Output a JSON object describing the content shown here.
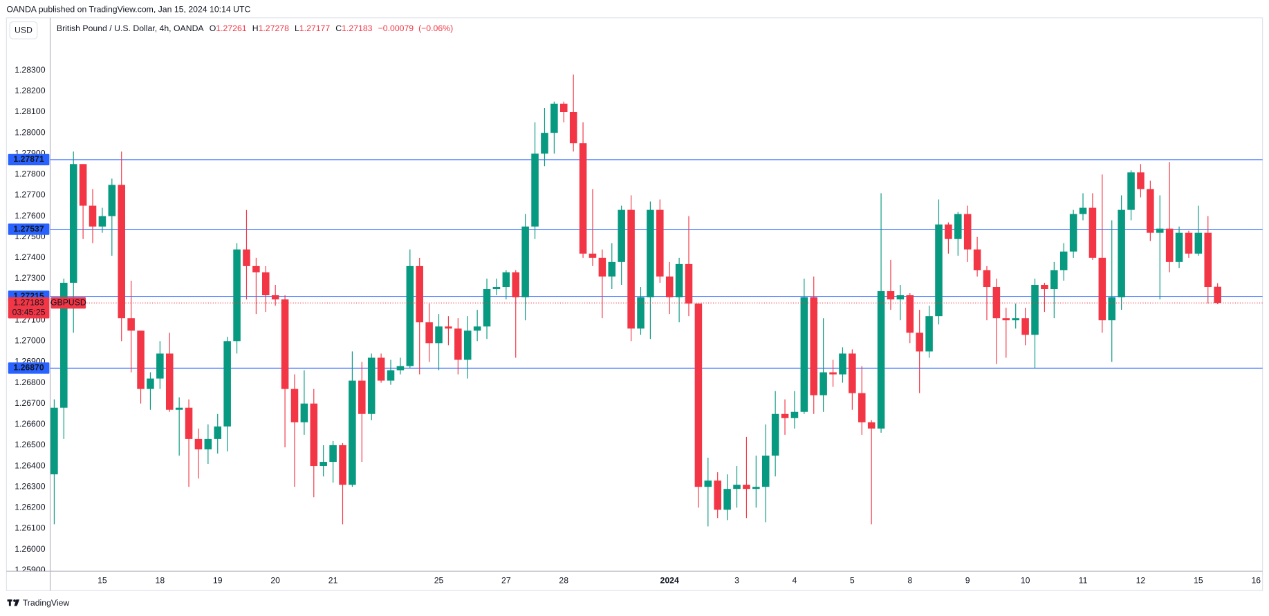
{
  "header": {
    "publisher_line": "OANDA published on TradingView.com, Jan 15, 2024 10:14 UTC",
    "currency": "USD",
    "brand": "TradingView"
  },
  "legend": {
    "name": "British Pound / U.S. Dollar, 4h, OANDA",
    "open_label": "O",
    "open": 1.27261,
    "high_label": "H",
    "high": 1.27278,
    "low_label": "L",
    "low": 1.27177,
    "close_label": "C",
    "close": 1.27183,
    "change": {
      "value": -0.00079,
      "label": "−0.00079"
    },
    "change_pct": {
      "value": -0.06,
      "label": "(−0.06%)"
    }
  },
  "chart_data": {
    "type": "candlestick",
    "up_color": "#089981",
    "down_color": "#f23645",
    "categories": [
      null,
      null,
      null,
      null,
      null,
      "15",
      null,
      null,
      null,
      null,
      null,
      "18",
      null,
      null,
      null,
      null,
      null,
      "19",
      null,
      null,
      null,
      null,
      null,
      "20",
      null,
      null,
      null,
      null,
      null,
      "21",
      null,
      null,
      null,
      null,
      null,
      null,
      null,
      null,
      null,
      null,
      "25",
      null,
      null,
      null,
      null,
      null,
      null,
      "27",
      null,
      null,
      null,
      null,
      null,
      "28",
      null,
      null,
      null,
      null,
      null,
      null,
      null,
      null,
      null,
      null,
      "2024",
      null,
      null,
      null,
      null,
      null,
      null,
      "3",
      null,
      null,
      null,
      null,
      null,
      "4",
      null,
      null,
      null,
      null,
      null,
      "5",
      null,
      null,
      null,
      null,
      null,
      "8",
      null,
      null,
      null,
      null,
      null,
      "9",
      null,
      null,
      null,
      null,
      null,
      "10",
      null,
      null,
      null,
      null,
      null,
      "11",
      null,
      null,
      null,
      null,
      null,
      "12",
      null,
      null,
      null,
      null,
      null,
      "15",
      null,
      null
    ],
    "x_axis_next_label": "16",
    "open": [
      1.2636,
      1.2668,
      1.2728,
      1.2785,
      1.2765,
      1.2755,
      1.276,
      1.2775,
      1.2711,
      1.2705,
      1.2677,
      1.2682,
      1.2694,
      1.2667,
      1.2668,
      1.2653,
      1.2648,
      1.2653,
      1.2659,
      1.27,
      1.2744,
      1.2736,
      1.2733,
      1.2722,
      1.272,
      1.2677,
      1.2661,
      1.267,
      1.264,
      1.2642,
      1.265,
      1.2631,
      1.2681,
      1.2665,
      1.2692,
      1.2681,
      1.2686,
      1.2688,
      1.2736,
      1.2709,
      1.2699,
      1.2707,
      1.2706,
      1.2691,
      1.2705,
      1.2707,
      1.2725,
      1.2726,
      1.2733,
      1.2721,
      1.2755,
      1.279,
      1.28,
      1.2814,
      1.281,
      1.2795,
      1.2742,
      1.274,
      1.2731,
      1.2738,
      1.2763,
      1.2706,
      1.2721,
      1.2763,
      1.2731,
      1.2721,
      1.2737,
      1.2718,
      1.263,
      1.2633,
      1.2619,
      1.2629,
      1.2631,
      1.2629,
      1.263,
      1.2645,
      1.2665,
      1.2663,
      1.2666,
      1.2721,
      1.2674,
      1.2685,
      1.2684,
      1.2694,
      1.2675,
      1.2661,
      1.2658,
      1.2724,
      1.272,
      1.2722,
      1.2704,
      1.2695,
      1.2712,
      1.2756,
      1.2749,
      1.2761,
      1.2744,
      1.2734,
      1.2726,
      1.2711,
      1.271,
      1.2711,
      1.2703,
      1.2727,
      1.2725,
      1.2734,
      1.2743,
      1.2761,
      1.2764,
      1.274,
      1.271,
      1.2721,
      1.2763,
      1.2781,
      1.2773,
      1.2752,
      1.2754,
      1.2738,
      1.2752,
      1.2742,
      1.2752,
      1.27261
    ],
    "high": [
      1.2672,
      1.273,
      1.2791,
      1.2785,
      1.2773,
      1.2764,
      1.2778,
      1.2791,
      1.2729,
      1.2705,
      1.2685,
      1.27,
      1.2704,
      1.2673,
      1.2672,
      1.2658,
      1.266,
      1.2665,
      1.2702,
      1.2747,
      1.2763,
      1.274,
      1.2736,
      1.2727,
      1.2722,
      1.2684,
      1.2686,
      1.2677,
      1.265,
      1.2652,
      1.2651,
      1.2695,
      1.269,
      1.2694,
      1.2694,
      1.2691,
      1.2692,
      1.2744,
      1.274,
      1.2718,
      1.2713,
      1.2712,
      1.2711,
      1.2712,
      1.2715,
      1.273,
      1.273,
      1.2734,
      1.2734,
      1.2761,
      1.2805,
      1.2812,
      1.2815,
      1.2815,
      1.2828,
      1.2805,
      1.2773,
      1.2744,
      1.2747,
      1.2765,
      1.277,
      1.2726,
      1.2767,
      1.2768,
      1.2738,
      1.274,
      1.276,
      1.2718,
      1.2644,
      1.2637,
      1.2636,
      1.264,
      1.2654,
      1.2645,
      1.266,
      1.2676,
      1.2672,
      1.2676,
      1.273,
      1.2731,
      1.2711,
      1.2691,
      1.2697,
      1.2696,
      1.2688,
      1.2662,
      1.2771,
      1.2739,
      1.2727,
      1.2723,
      1.2715,
      1.2717,
      1.2768,
      1.2757,
      1.2762,
      1.2765,
      1.275,
      1.2736,
      1.273,
      1.2716,
      1.2718,
      1.2716,
      1.273,
      1.2728,
      1.2738,
      1.2747,
      1.2763,
      1.2771,
      1.2771,
      1.278,
      1.2758,
      1.277,
      1.2782,
      1.2785,
      1.2777,
      1.277,
      1.2786,
      1.2755,
      1.2753,
      1.2765,
      1.276,
      1.27278
    ],
    "low": [
      1.2612,
      1.2653,
      1.2704,
      1.2749,
      1.2747,
      1.2752,
      1.2741,
      1.27,
      1.2685,
      1.267,
      1.2667,
      1.2677,
      1.2666,
      1.2645,
      1.263,
      1.2634,
      1.2641,
      1.2646,
      1.2647,
      1.2694,
      1.272,
      1.2713,
      1.2714,
      1.2717,
      1.2649,
      1.263,
      1.2655,
      1.2625,
      1.2635,
      1.2632,
      1.2612,
      1.263,
      1.2642,
      1.2662,
      1.268,
      1.2679,
      1.2684,
      1.2687,
      1.2684,
      1.269,
      1.2686,
      1.2698,
      1.2684,
      1.2682,
      1.27,
      1.2701,
      1.2722,
      1.272,
      1.2692,
      1.271,
      1.2749,
      1.2784,
      1.279,
      1.2805,
      1.2791,
      1.274,
      1.2736,
      1.2711,
      1.2725,
      1.2727,
      1.27,
      1.2703,
      1.2701,
      1.2728,
      1.2713,
      1.2709,
      1.2712,
      1.262,
      1.2611,
      1.2615,
      1.2614,
      1.262,
      1.2615,
      1.262,
      1.2613,
      1.2635,
      1.2655,
      1.2658,
      1.2665,
      1.2665,
      1.2666,
      1.2678,
      1.268,
      1.2667,
      1.2655,
      1.2612,
      1.2656,
      1.2715,
      1.271,
      1.2699,
      1.2675,
      1.2692,
      1.2708,
      1.2742,
      1.2741,
      1.2738,
      1.2731,
      1.271,
      1.2689,
      1.2692,
      1.2706,
      1.2698,
      1.2687,
      1.2714,
      1.2711,
      1.2729,
      1.274,
      1.2758,
      1.2739,
      1.2704,
      1.269,
      1.2715,
      1.2758,
      1.2769,
      1.2748,
      1.272,
      1.2733,
      1.2735,
      1.274,
      1.2741,
      1.2718,
      1.27177
    ],
    "close": [
      1.2668,
      1.2728,
      1.2785,
      1.2765,
      1.2755,
      1.276,
      1.2775,
      1.2711,
      1.2705,
      1.2677,
      1.2682,
      1.2694,
      1.2667,
      1.2668,
      1.2653,
      1.2648,
      1.2653,
      1.2659,
      1.27,
      1.2744,
      1.2736,
      1.2733,
      1.2722,
      1.272,
      1.2677,
      1.2661,
      1.267,
      1.264,
      1.2642,
      1.265,
      1.2631,
      1.2681,
      1.2665,
      1.2692,
      1.2681,
      1.2686,
      1.2688,
      1.2736,
      1.2709,
      1.2699,
      1.2707,
      1.2706,
      1.2691,
      1.2705,
      1.2707,
      1.2725,
      1.2726,
      1.2733,
      1.2721,
      1.2755,
      1.279,
      1.28,
      1.2814,
      1.281,
      1.2795,
      1.2742,
      1.274,
      1.2731,
      1.2738,
      1.2763,
      1.2706,
      1.2721,
      1.2763,
      1.2731,
      1.2721,
      1.2737,
      1.2718,
      1.263,
      1.2633,
      1.2619,
      1.2629,
      1.2631,
      1.2629,
      1.263,
      1.2645,
      1.2665,
      1.2663,
      1.2666,
      1.2721,
      1.2674,
      1.2685,
      1.2684,
      1.2694,
      1.2675,
      1.2661,
      1.2658,
      1.2724,
      1.272,
      1.2722,
      1.2704,
      1.2695,
      1.2712,
      1.2756,
      1.2749,
      1.2761,
      1.2744,
      1.2734,
      1.2726,
      1.2711,
      1.271,
      1.2711,
      1.2703,
      1.2727,
      1.2725,
      1.2734,
      1.2743,
      1.2761,
      1.2764,
      1.274,
      1.271,
      1.2721,
      1.2763,
      1.2781,
      1.2773,
      1.2752,
      1.2754,
      1.2738,
      1.2752,
      1.2742,
      1.2752,
      1.2726,
      1.27183
    ],
    "ylim": [
      1.25895,
      1.28463
    ],
    "yticks": [
      {
        "value": 1.259,
        "label": "1.25900"
      },
      {
        "value": 1.26,
        "label": "1.26000"
      },
      {
        "value": 1.261,
        "label": "1.26100"
      },
      {
        "value": 1.262,
        "label": "1.26200"
      },
      {
        "value": 1.263,
        "label": "1.26300"
      },
      {
        "value": 1.264,
        "label": "1.26400"
      },
      {
        "value": 1.265,
        "label": "1.26500"
      },
      {
        "value": 1.266,
        "label": "1.26600"
      },
      {
        "value": 1.267,
        "label": "1.26700"
      },
      {
        "value": 1.268,
        "label": "1.26800"
      },
      {
        "value": 1.269,
        "label": "1.26900"
      },
      {
        "value": 1.27,
        "label": "1.27000"
      },
      {
        "value": 1.271,
        "label": "1.27100"
      },
      {
        "value": 1.272,
        "label": "1.27200"
      },
      {
        "value": 1.273,
        "label": "1.27300"
      },
      {
        "value": 1.274,
        "label": "1.27400"
      },
      {
        "value": 1.275,
        "label": "1.27500"
      },
      {
        "value": 1.276,
        "label": "1.27600"
      },
      {
        "value": 1.277,
        "label": "1.27700"
      },
      {
        "value": 1.278,
        "label": "1.27800"
      },
      {
        "value": 1.279,
        "label": "1.27900"
      },
      {
        "value": 1.28,
        "label": "1.28000"
      },
      {
        "value": 1.281,
        "label": "1.28100"
      },
      {
        "value": 1.282,
        "label": "1.28200"
      },
      {
        "value": 1.283,
        "label": "1.28300"
      }
    ],
    "levels": [
      1.27871,
      1.27537,
      1.27215,
      {
        "value": 1.2687,
        "label": "1.26870"
      }
    ],
    "level_color": "#2962ff",
    "last_price": 1.27183,
    "symbol": "GBPUSD",
    "countdown": "03:45:25"
  }
}
